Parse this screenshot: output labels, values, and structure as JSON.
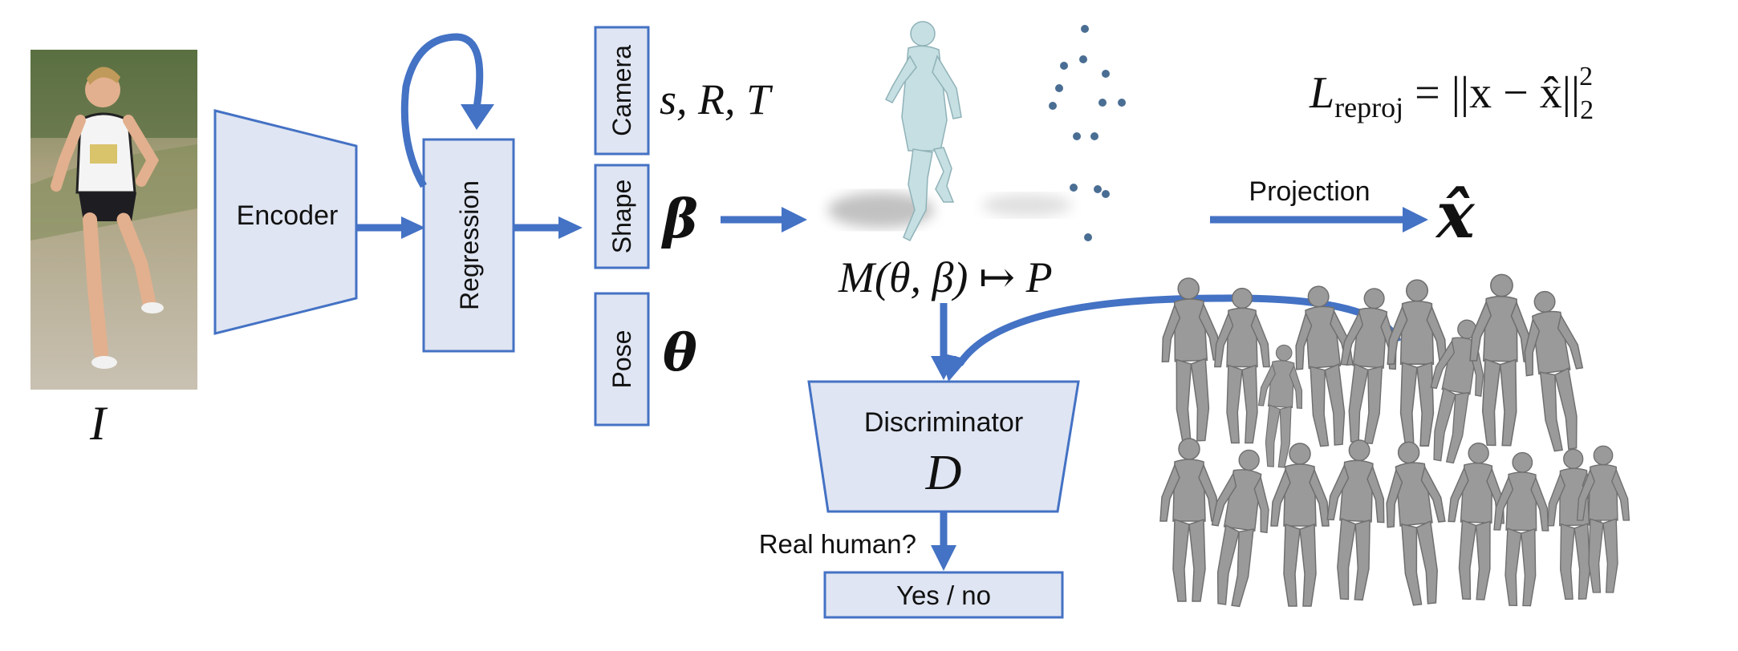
{
  "input_label": "I",
  "encoder": {
    "label": "Encoder"
  },
  "regression": {
    "label": "Regression"
  },
  "params": {
    "camera": {
      "label": "Camera",
      "symbol": "s, R, T"
    },
    "shape": {
      "label": "Shape",
      "symbol": "β"
    },
    "pose": {
      "label": "Pose",
      "symbol": "θ"
    }
  },
  "model_eq": "M(θ, β) ↦ P",
  "loss": {
    "L": "L",
    "sub": "reproj",
    "rhs": " = ||x − x̂||",
    "sub2": "2",
    "sup2": "2"
  },
  "projection": {
    "label": "Projection",
    "output": "x̂"
  },
  "discriminator": {
    "label": "Discriminator",
    "symbol": "D"
  },
  "question": "Real human?",
  "answer": "Yes / no",
  "colors": {
    "box_fill": "#dfe5f2",
    "accent": "#4472c4"
  }
}
